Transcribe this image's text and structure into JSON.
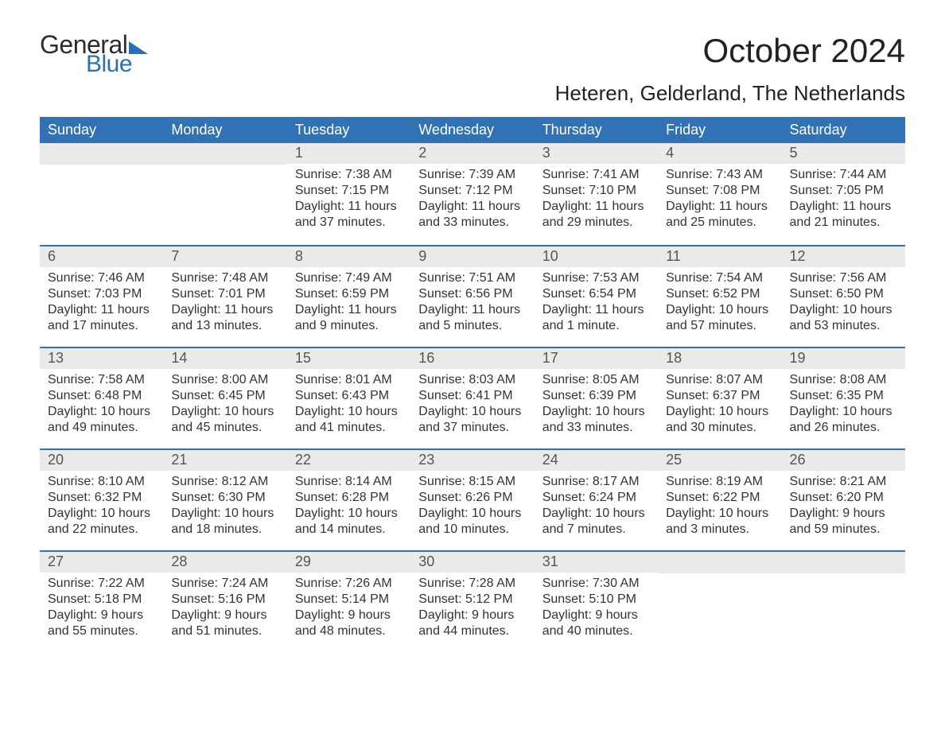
{
  "brand": {
    "part1": "General",
    "part2": "Blue",
    "tri_color": "#2a70b8"
  },
  "title": "October 2024",
  "subtitle": "Heteren, Gelderland, The Netherlands",
  "colors": {
    "header_bg": "#3072b3",
    "header_text": "#ffffff",
    "daybar_bg": "#eaeaea",
    "daybar_text": "#555555",
    "body_text": "#333333",
    "rule": "#3072b3",
    "page_bg": "#ffffff"
  },
  "day_names": [
    "Sunday",
    "Monday",
    "Tuesday",
    "Wednesday",
    "Thursday",
    "Friday",
    "Saturday"
  ],
  "weeks": [
    [
      {
        "empty": true
      },
      {
        "empty": true
      },
      {
        "day": "1",
        "sunrise": "Sunrise: 7:38 AM",
        "sunset": "Sunset: 7:15 PM",
        "daylight": "Daylight: 11 hours and 37 minutes."
      },
      {
        "day": "2",
        "sunrise": "Sunrise: 7:39 AM",
        "sunset": "Sunset: 7:12 PM",
        "daylight": "Daylight: 11 hours and 33 minutes."
      },
      {
        "day": "3",
        "sunrise": "Sunrise: 7:41 AM",
        "sunset": "Sunset: 7:10 PM",
        "daylight": "Daylight: 11 hours and 29 minutes."
      },
      {
        "day": "4",
        "sunrise": "Sunrise: 7:43 AM",
        "sunset": "Sunset: 7:08 PM",
        "daylight": "Daylight: 11 hours and 25 minutes."
      },
      {
        "day": "5",
        "sunrise": "Sunrise: 7:44 AM",
        "sunset": "Sunset: 7:05 PM",
        "daylight": "Daylight: 11 hours and 21 minutes."
      }
    ],
    [
      {
        "day": "6",
        "sunrise": "Sunrise: 7:46 AM",
        "sunset": "Sunset: 7:03 PM",
        "daylight": "Daylight: 11 hours and 17 minutes."
      },
      {
        "day": "7",
        "sunrise": "Sunrise: 7:48 AM",
        "sunset": "Sunset: 7:01 PM",
        "daylight": "Daylight: 11 hours and 13 minutes."
      },
      {
        "day": "8",
        "sunrise": "Sunrise: 7:49 AM",
        "sunset": "Sunset: 6:59 PM",
        "daylight": "Daylight: 11 hours and 9 minutes."
      },
      {
        "day": "9",
        "sunrise": "Sunrise: 7:51 AM",
        "sunset": "Sunset: 6:56 PM",
        "daylight": "Daylight: 11 hours and 5 minutes."
      },
      {
        "day": "10",
        "sunrise": "Sunrise: 7:53 AM",
        "sunset": "Sunset: 6:54 PM",
        "daylight": "Daylight: 11 hours and 1 minute."
      },
      {
        "day": "11",
        "sunrise": "Sunrise: 7:54 AM",
        "sunset": "Sunset: 6:52 PM",
        "daylight": "Daylight: 10 hours and 57 minutes."
      },
      {
        "day": "12",
        "sunrise": "Sunrise: 7:56 AM",
        "sunset": "Sunset: 6:50 PM",
        "daylight": "Daylight: 10 hours and 53 minutes."
      }
    ],
    [
      {
        "day": "13",
        "sunrise": "Sunrise: 7:58 AM",
        "sunset": "Sunset: 6:48 PM",
        "daylight": "Daylight: 10 hours and 49 minutes."
      },
      {
        "day": "14",
        "sunrise": "Sunrise: 8:00 AM",
        "sunset": "Sunset: 6:45 PM",
        "daylight": "Daylight: 10 hours and 45 minutes."
      },
      {
        "day": "15",
        "sunrise": "Sunrise: 8:01 AM",
        "sunset": "Sunset: 6:43 PM",
        "daylight": "Daylight: 10 hours and 41 minutes."
      },
      {
        "day": "16",
        "sunrise": "Sunrise: 8:03 AM",
        "sunset": "Sunset: 6:41 PM",
        "daylight": "Daylight: 10 hours and 37 minutes."
      },
      {
        "day": "17",
        "sunrise": "Sunrise: 8:05 AM",
        "sunset": "Sunset: 6:39 PM",
        "daylight": "Daylight: 10 hours and 33 minutes."
      },
      {
        "day": "18",
        "sunrise": "Sunrise: 8:07 AM",
        "sunset": "Sunset: 6:37 PM",
        "daylight": "Daylight: 10 hours and 30 minutes."
      },
      {
        "day": "19",
        "sunrise": "Sunrise: 8:08 AM",
        "sunset": "Sunset: 6:35 PM",
        "daylight": "Daylight: 10 hours and 26 minutes."
      }
    ],
    [
      {
        "day": "20",
        "sunrise": "Sunrise: 8:10 AM",
        "sunset": "Sunset: 6:32 PM",
        "daylight": "Daylight: 10 hours and 22 minutes."
      },
      {
        "day": "21",
        "sunrise": "Sunrise: 8:12 AM",
        "sunset": "Sunset: 6:30 PM",
        "daylight": "Daylight: 10 hours and 18 minutes."
      },
      {
        "day": "22",
        "sunrise": "Sunrise: 8:14 AM",
        "sunset": "Sunset: 6:28 PM",
        "daylight": "Daylight: 10 hours and 14 minutes."
      },
      {
        "day": "23",
        "sunrise": "Sunrise: 8:15 AM",
        "sunset": "Sunset: 6:26 PM",
        "daylight": "Daylight: 10 hours and 10 minutes."
      },
      {
        "day": "24",
        "sunrise": "Sunrise: 8:17 AM",
        "sunset": "Sunset: 6:24 PM",
        "daylight": "Daylight: 10 hours and 7 minutes."
      },
      {
        "day": "25",
        "sunrise": "Sunrise: 8:19 AM",
        "sunset": "Sunset: 6:22 PM",
        "daylight": "Daylight: 10 hours and 3 minutes."
      },
      {
        "day": "26",
        "sunrise": "Sunrise: 8:21 AM",
        "sunset": "Sunset: 6:20 PM",
        "daylight": "Daylight: 9 hours and 59 minutes."
      }
    ],
    [
      {
        "day": "27",
        "sunrise": "Sunrise: 7:22 AM",
        "sunset": "Sunset: 5:18 PM",
        "daylight": "Daylight: 9 hours and 55 minutes."
      },
      {
        "day": "28",
        "sunrise": "Sunrise: 7:24 AM",
        "sunset": "Sunset: 5:16 PM",
        "daylight": "Daylight: 9 hours and 51 minutes."
      },
      {
        "day": "29",
        "sunrise": "Sunrise: 7:26 AM",
        "sunset": "Sunset: 5:14 PM",
        "daylight": "Daylight: 9 hours and 48 minutes."
      },
      {
        "day": "30",
        "sunrise": "Sunrise: 7:28 AM",
        "sunset": "Sunset: 5:12 PM",
        "daylight": "Daylight: 9 hours and 44 minutes."
      },
      {
        "day": "31",
        "sunrise": "Sunrise: 7:30 AM",
        "sunset": "Sunset: 5:10 PM",
        "daylight": "Daylight: 9 hours and 40 minutes."
      },
      {
        "empty": true
      },
      {
        "empty": true
      }
    ]
  ]
}
